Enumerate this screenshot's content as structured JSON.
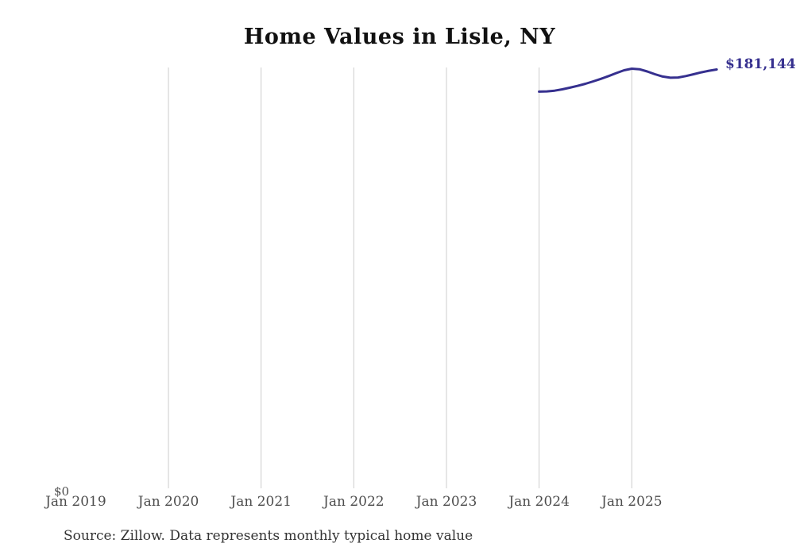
{
  "header": {
    "title": "Home Values in Lisle, NY"
  },
  "footer": {
    "source_note": "Source: Zillow. Data represents monthly typical home value"
  },
  "axis": {
    "y_zero_label": "$0",
    "x_tick_labels": [
      "Jan 2019",
      "Jan 2020",
      "Jan 2021",
      "Jan 2022",
      "Jan 2023",
      "Jan 2024",
      "Jan 2025"
    ]
  },
  "annotation": {
    "end_value_label": "$181,144"
  },
  "colors": {
    "line": "#36308f",
    "gridline": "#cccccc",
    "tick_text": "#4d4d4d",
    "title_text": "#111111",
    "source_text": "#333333",
    "end_label_text": "#36308f"
  },
  "chart_data": {
    "type": "line",
    "title": "Home Values in Lisle, NY",
    "xlabel": "",
    "ylabel": "",
    "legend": "none",
    "grid": "vertical-only",
    "x_tick_labels": [
      "Jan 2019",
      "Jan 2020",
      "Jan 2021",
      "Jan 2022",
      "Jan 2023",
      "Jan 2024",
      "Jan 2025"
    ],
    "y_tick_labels": [
      "$0"
    ],
    "ylim": [
      0,
      182000
    ],
    "end_label": "$181,144",
    "series": [
      {
        "name": "Monthly typical home value",
        "x": [
          "2024-01",
          "2024-02",
          "2024-03",
          "2024-04",
          "2024-05",
          "2024-06",
          "2024-07",
          "2024-08",
          "2024-09",
          "2024-10",
          "2024-11",
          "2024-12",
          "2025-01",
          "2025-02",
          "2025-03",
          "2025-04",
          "2025-05",
          "2025-06",
          "2025-07",
          "2025-08",
          "2025-09",
          "2025-10",
          "2025-11",
          "2025-12"
        ],
        "values": [
          171600,
          171700,
          172000,
          172600,
          173300,
          174100,
          175000,
          176000,
          177100,
          178300,
          179600,
          180800,
          181500,
          181250,
          180300,
          179100,
          178100,
          177600,
          177700,
          178300,
          179100,
          179900,
          180600,
          181144
        ]
      }
    ]
  }
}
